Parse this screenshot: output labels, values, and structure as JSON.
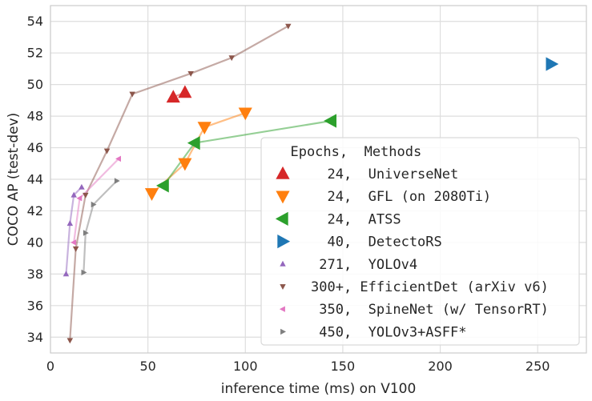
{
  "chart_data": {
    "type": "scatter",
    "xlabel": "inference time (ms) on V100",
    "ylabel": "COCO AP (test-dev)",
    "xlim": [
      0,
      275
    ],
    "ylim": [
      33,
      55
    ],
    "xticks": [
      0,
      50,
      100,
      150,
      200,
      250
    ],
    "yticks": [
      34,
      36,
      38,
      40,
      42,
      44,
      46,
      48,
      50,
      52,
      54
    ],
    "grid": true,
    "legend_position": "lower-right",
    "legend_title": "  Epochs,  Methods",
    "series": [
      {
        "name": "UniverseNet",
        "label": "  24,  UniverseNet",
        "marker": "triangle-up",
        "size": "large",
        "color": "#d62728",
        "points": [
          [
            63,
            49.2
          ],
          [
            69,
            49.5
          ]
        ]
      },
      {
        "name": "GFL (on 2080Ti)",
        "label": "  24,  GFL (on 2080Ti)",
        "marker": "triangle-down",
        "size": "large",
        "color": "#ff7f0e",
        "points": [
          [
            52,
            43.1
          ],
          [
            69,
            45.0
          ],
          [
            79,
            47.3
          ],
          [
            100,
            48.2
          ]
        ]
      },
      {
        "name": "ATSS",
        "label": "  24,  ATSS",
        "marker": "triangle-left",
        "size": "large",
        "color": "#2ca02c",
        "points": [
          [
            58,
            43.6
          ],
          [
            74,
            46.3
          ],
          [
            144,
            47.7
          ]
        ]
      },
      {
        "name": "DetectoRS",
        "label": "  40,  DetectoRS",
        "marker": "triangle-right",
        "size": "large",
        "color": "#1f77b4",
        "points": [
          [
            257,
            51.3
          ]
        ]
      },
      {
        "name": "YOLOv4",
        "label": " 271,  YOLOv4",
        "marker": "triangle-up",
        "size": "small",
        "color": "#9467bd",
        "points": [
          [
            8,
            38.0
          ],
          [
            10,
            41.2
          ],
          [
            12,
            43.0
          ],
          [
            16,
            43.5
          ]
        ]
      },
      {
        "name": "EfficientDet (arXiv v6)",
        "label": "300+, EfficientDet (arXiv v6)",
        "marker": "triangle-down",
        "size": "small",
        "color": "#8c564b",
        "points": [
          [
            10,
            33.8
          ],
          [
            13,
            39.6
          ],
          [
            18,
            43.0
          ],
          [
            29,
            45.8
          ],
          [
            42,
            49.4
          ],
          [
            72,
            50.7
          ],
          [
            93,
            51.7
          ],
          [
            122,
            53.7
          ]
        ]
      },
      {
        "name": "SpineNet (w/ TensorRT)",
        "label": " 350,  SpineNet (w/ TensorRT)",
        "marker": "triangle-left",
        "size": "small",
        "color": "#e377c2",
        "points": [
          [
            12,
            40.0
          ],
          [
            15,
            42.8
          ],
          [
            35,
            45.3
          ]
        ]
      },
      {
        "name": "YOLOv3+ASFF*",
        "label": " 450,  YOLOv3+ASFF*",
        "marker": "triangle-right",
        "size": "small",
        "color": "#7f7f7f",
        "points": [
          [
            17,
            38.1
          ],
          [
            18,
            40.6
          ],
          [
            22,
            42.4
          ],
          [
            34,
            43.9
          ]
        ]
      }
    ]
  }
}
